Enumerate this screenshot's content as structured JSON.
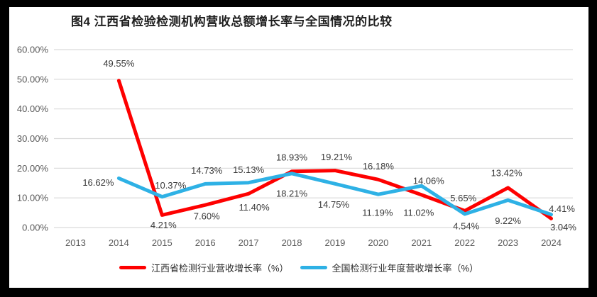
{
  "theme": {
    "frame_bg": "#000000",
    "panel_bg": "#ffffff",
    "gridline": "#d9d9d9",
    "axis_text": "#595959",
    "data_label_text": "#3a3a3a",
    "title_text": "#1f1f1f"
  },
  "chart_data": {
    "type": "line",
    "title": "图4 江西省检验检测机构营收总额增长率与全国情况的比较",
    "categories": [
      "2013",
      "2014",
      "2015",
      "2016",
      "2017",
      "2018",
      "2019",
      "2020",
      "2021",
      "2022",
      "2023",
      "2024"
    ],
    "xlabel": "",
    "ylabel": "",
    "ylim": [
      0,
      60
    ],
    "y_ticks": [
      "60.00%",
      "50.00%",
      "40.00%",
      "30.00%",
      "20.00%",
      "10.00%",
      "0.00%"
    ],
    "grid": "horizontal",
    "legend_position": "bottom",
    "series": [
      {
        "name": "江西省检测行业营收增长率（%）",
        "color": "#fe0000",
        "values": [
          null,
          49.55,
          4.21,
          7.6,
          11.4,
          18.93,
          19.21,
          16.18,
          11.02,
          5.65,
          13.42,
          3.04
        ],
        "data_labels": [
          null,
          "49.55%",
          "4.21%",
          "7.60%",
          "11.40%",
          "18.93%",
          "19.21%",
          "16.18%",
          "11.02%",
          "5.65%",
          "13.42%",
          "3.04%"
        ],
        "label_offsets": [
          null,
          [
            0,
            -24
          ],
          [
            2,
            14
          ],
          [
            2,
            16
          ],
          [
            8,
            19
          ],
          [
            0,
            -20
          ],
          [
            2,
            -19
          ],
          [
            0,
            -19
          ],
          [
            -4,
            25
          ],
          [
            -2,
            -18
          ],
          [
            -2,
            -21
          ],
          [
            17,
            12
          ]
        ]
      },
      {
        "name": "全国检测行业年度营收增长率（%）",
        "color": "#2eb1e5",
        "values": [
          null,
          16.62,
          10.37,
          14.73,
          15.13,
          18.21,
          14.75,
          11.19,
          14.06,
          4.54,
          9.22,
          4.41
        ],
        "data_labels": [
          null,
          "16.62%",
          "10.37%",
          "14.73%",
          "15.13%",
          "18.21%",
          "14.75%",
          "11.19%",
          "14.06%",
          "4.54%",
          "9.22%",
          "4.41%"
        ],
        "label_offsets": [
          null,
          [
            -29,
            6
          ],
          [
            12,
            -16
          ],
          [
            2,
            -19
          ],
          [
            0,
            -18
          ],
          [
            0,
            28
          ],
          [
            -2,
            29
          ],
          [
            -1,
            26
          ],
          [
            10,
            -7
          ],
          [
            2,
            17
          ],
          [
            0,
            29
          ],
          [
            15,
            -8
          ]
        ]
      }
    ]
  }
}
